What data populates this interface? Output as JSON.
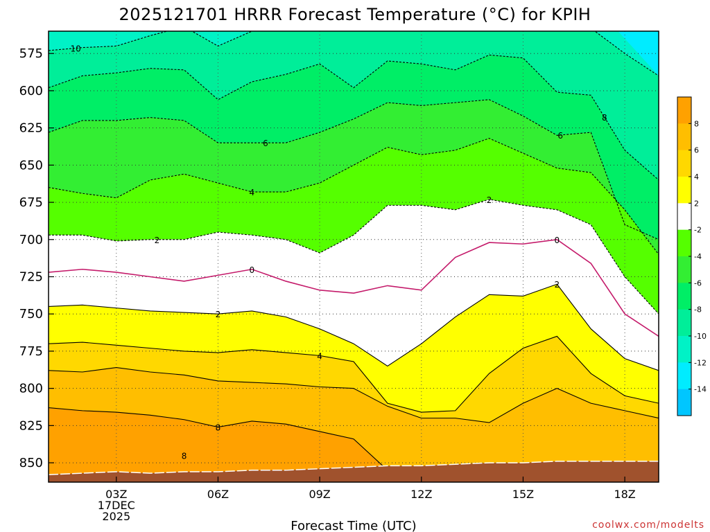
{
  "chart_data": {
    "type": "contour",
    "title": "2025121701 HRRR Forecast Temperature (°C) for KPIH",
    "xlabel": "Forecast Time (UTC)",
    "ylabel": "",
    "xlim": [
      1,
      19
    ],
    "ylim": [
      560,
      863
    ],
    "y_inverted": true,
    "grid": "dotted",
    "x_ticks": [
      {
        "x": 3,
        "lines": [
          "03Z",
          "17DEC",
          "2025"
        ]
      },
      {
        "x": 6,
        "lines": [
          "06Z"
        ]
      },
      {
        "x": 9,
        "lines": [
          "09Z"
        ]
      },
      {
        "x": 12,
        "lines": [
          "12Z"
        ]
      },
      {
        "x": 15,
        "lines": [
          "15Z"
        ]
      },
      {
        "x": 18,
        "lines": [
          "18Z"
        ]
      }
    ],
    "y_ticks": [
      575,
      600,
      625,
      650,
      675,
      700,
      725,
      750,
      775,
      800,
      825,
      850
    ],
    "hours": [
      1,
      2,
      3,
      4,
      5,
      6,
      7,
      8,
      9,
      10,
      11,
      12,
      13,
      14,
      15,
      16,
      17,
      18,
      19
    ],
    "isotherm_levels_hPa": [
      {
        "temp": -10,
        "p": [
          573,
          571,
          570,
          563,
          557,
          570,
          560,
          555,
          553,
          550,
          545,
          553,
          558,
          545,
          540,
          548,
          558,
          575,
          590
        ]
      },
      {
        "temp": -8,
        "p": [
          598,
          590,
          588,
          585,
          586,
          606,
          594,
          589,
          582,
          598,
          580,
          582,
          586,
          576,
          578,
          601,
          603,
          640,
          660
        ]
      },
      {
        "temp": -6,
        "p": [
          628,
          620,
          620,
          618,
          620,
          635,
          635,
          635,
          628,
          619,
          608,
          610,
          608,
          606,
          617,
          630,
          628,
          690,
          700
        ]
      },
      {
        "temp": -4,
        "p": [
          665,
          669,
          672,
          660,
          656,
          662,
          668,
          668,
          662,
          650,
          638,
          643,
          640,
          632,
          642,
          652,
          655,
          680,
          710
        ]
      },
      {
        "temp": -2,
        "p": [
          697,
          697,
          701,
          700,
          700,
          695,
          697,
          700,
          709,
          697,
          677,
          677,
          680,
          673,
          677,
          680,
          690,
          725,
          750
        ]
      },
      {
        "temp": 0,
        "p": [
          722,
          720,
          722,
          725,
          728,
          724,
          720,
          728,
          734,
          736,
          731,
          734,
          712,
          702,
          703,
          700,
          716,
          750,
          765
        ]
      },
      {
        "temp": 2,
        "p": [
          745,
          744,
          746,
          748,
          749,
          750,
          748,
          752,
          760,
          770,
          785,
          770,
          752,
          737,
          738,
          730,
          760,
          780,
          788
        ]
      },
      {
        "temp": 4,
        "p": [
          770,
          769,
          771,
          773,
          775,
          776,
          774,
          776,
          778,
          782,
          810,
          816,
          815,
          790,
          773,
          765,
          790,
          805,
          810
        ]
      },
      {
        "temp": 6,
        "p": [
          788,
          789,
          786,
          789,
          791,
          795,
          796,
          797,
          799,
          800,
          812,
          820,
          820,
          823,
          810,
          800,
          810,
          815,
          820
        ]
      },
      {
        "temp": 8,
        "p": [
          813,
          815,
          816,
          818,
          821,
          826,
          822,
          824,
          829,
          834,
          855,
          865,
          865,
          865,
          862,
          851,
          851,
          850,
          865
        ]
      },
      {
        "temp": 10,
        "p": [
          865,
          865,
          865,
          865,
          865,
          865,
          865,
          865,
          865,
          865,
          865,
          865,
          865,
          865,
          865,
          865,
          865,
          865,
          865
        ]
      }
    ],
    "terrain_surface_hPa": [
      858,
      857,
      856,
      857,
      856,
      856,
      855,
      855,
      854,
      853,
      852,
      852,
      851,
      850,
      850,
      849,
      849,
      849,
      849
    ],
    "contour_labels": [
      {
        "text": "10",
        "x": 1.8,
        "temp": -10
      },
      {
        "text": "8",
        "x": 17.4,
        "temp": -8
      },
      {
        "text": "6",
        "x": 7.4,
        "temp": -6
      },
      {
        "text": "6",
        "x": 16.1,
        "temp": -6
      },
      {
        "text": "4",
        "x": 7.0,
        "temp": -4
      },
      {
        "text": "2",
        "x": 4.2,
        "temp": -2
      },
      {
        "text": "2",
        "x": 14.0,
        "temp": -2
      },
      {
        "text": "0",
        "x": 7.0,
        "temp": 0
      },
      {
        "text": "0",
        "x": 16.0,
        "temp": 0
      },
      {
        "text": "2",
        "x": 6.0,
        "temp": 2
      },
      {
        "text": "2",
        "x": 16.0,
        "temp": 2
      },
      {
        "text": "4",
        "x": 9.0,
        "temp": 4
      },
      {
        "text": "8",
        "x": 6.0,
        "temp": 8
      },
      {
        "text": "8",
        "x": 5.0,
        "temp": 8
      }
    ],
    "colorbar": {
      "ticks": [
        8,
        6,
        4,
        2,
        -2,
        -4,
        -6,
        -8,
        -10,
        -12,
        -14
      ],
      "stops": [
        {
          "from": 10,
          "to": 8,
          "color": "#ffa100"
        },
        {
          "from": 8,
          "to": 6,
          "color": "#ffbe00"
        },
        {
          "from": 6,
          "to": 4,
          "color": "#ffd800"
        },
        {
          "from": 4,
          "to": 2,
          "color": "#ffff00"
        },
        {
          "from": 2,
          "to": -2,
          "color": "#ffffff"
        },
        {
          "from": -2,
          "to": -4,
          "color": "#55ff00"
        },
        {
          "from": -4,
          "to": -6,
          "color": "#33ee33"
        },
        {
          "from": -6,
          "to": -8,
          "color": "#00ee66"
        },
        {
          "from": -8,
          "to": -10,
          "color": "#00ee99"
        },
        {
          "from": -10,
          "to": -12,
          "color": "#00f2c6"
        },
        {
          "from": -12,
          "to": -14,
          "color": "#00ecff"
        },
        {
          "from": -14,
          "to": -16,
          "color": "#00c6ff"
        }
      ]
    },
    "band_colors": [
      {
        "temp_min": 8,
        "temp_max": 10,
        "color": "#ffa100"
      },
      {
        "temp_min": 6,
        "temp_max": 8,
        "color": "#ffbe00"
      },
      {
        "temp_min": 4,
        "temp_max": 6,
        "color": "#ffd800"
      },
      {
        "temp_min": 2,
        "temp_max": 4,
        "color": "#ffff00"
      },
      {
        "temp_min": -2,
        "temp_max": 2,
        "color": "#ffffff"
      },
      {
        "temp_min": -4,
        "temp_max": -2,
        "color": "#55ff00"
      },
      {
        "temp_min": -6,
        "temp_max": -4,
        "color": "#33ee33"
      },
      {
        "temp_min": -8,
        "temp_max": -6,
        "color": "#00ee66"
      },
      {
        "temp_min": -10,
        "temp_max": -8,
        "color": "#00ee99"
      },
      {
        "temp_min": -12,
        "temp_max": -10,
        "color": "#00f2c6"
      }
    ],
    "terrain_color": "#a0522d",
    "zero_line_color": "#c41a6a"
  },
  "credit": "coolwx.com/modelts"
}
